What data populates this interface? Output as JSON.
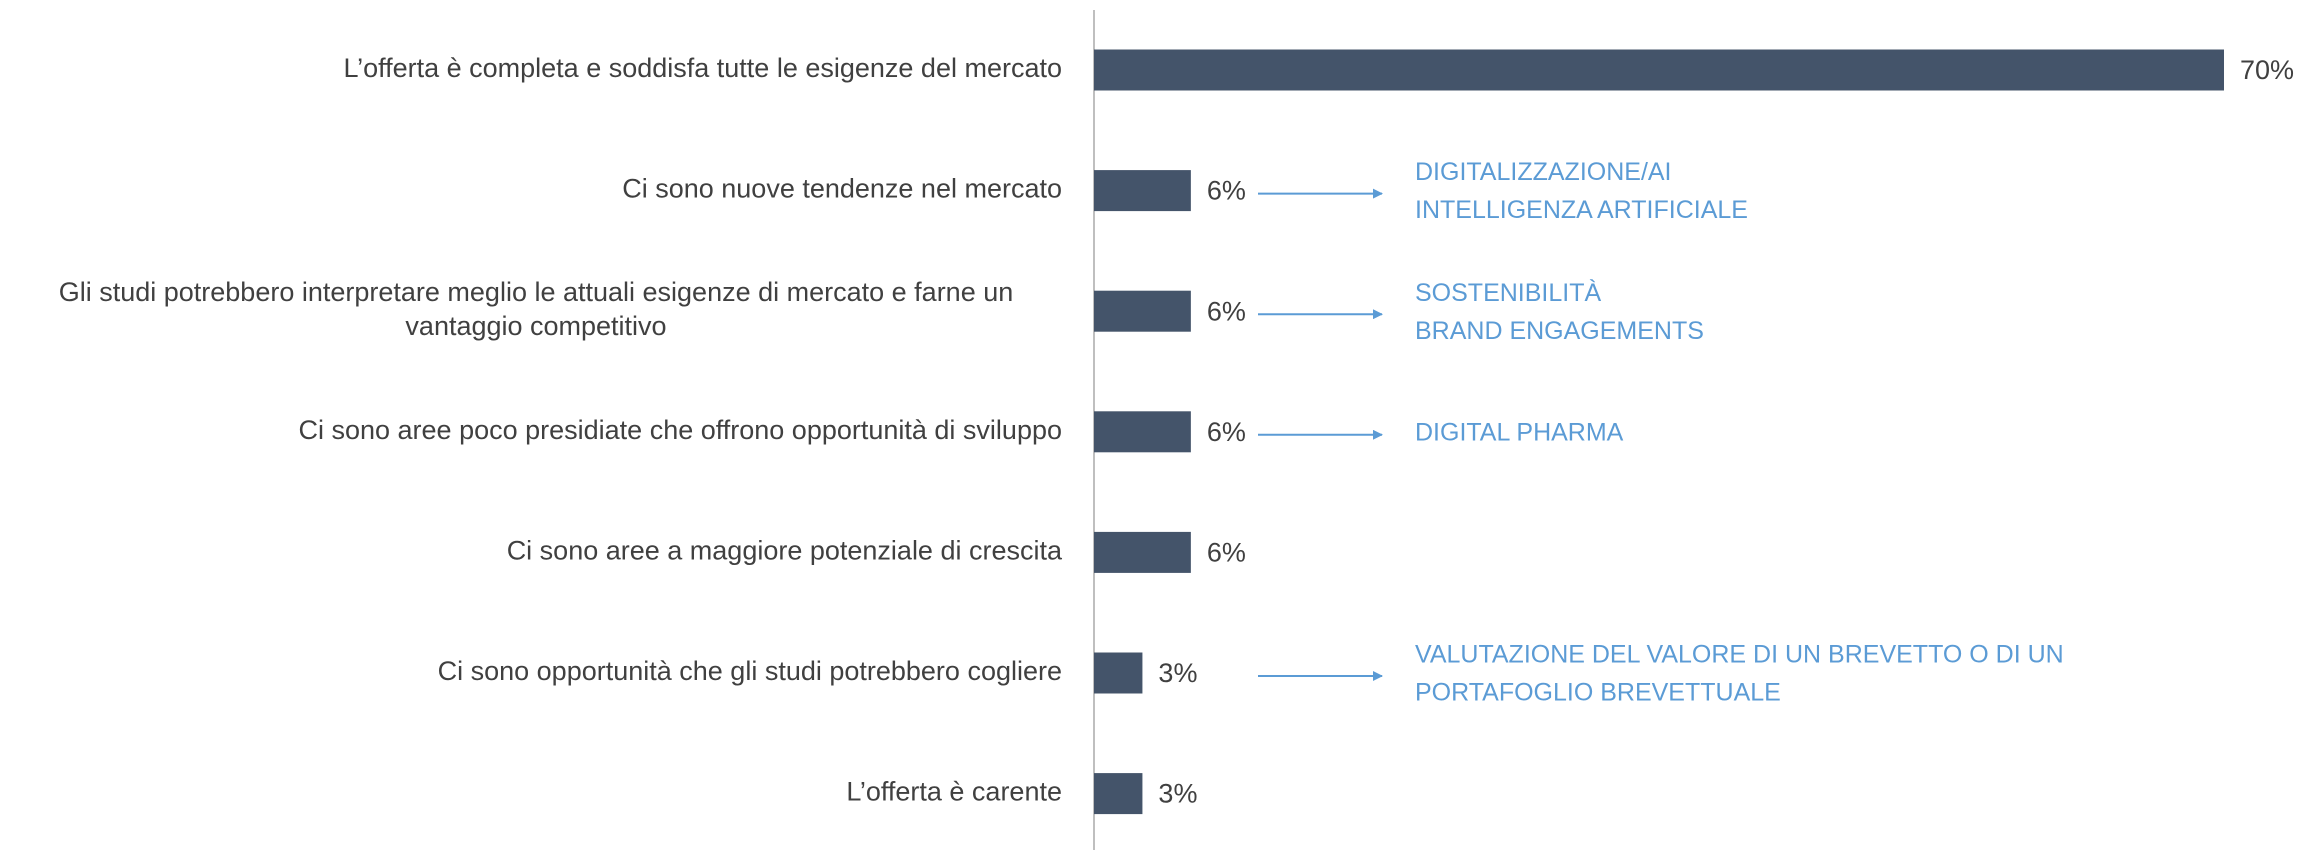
{
  "chart_data": {
    "type": "bar",
    "orientation": "horizontal",
    "categories": [
      "L’offerta è completa e soddisfa tutte le esigenze del mercato",
      "Ci sono nuove tendenze nel mercato",
      "Gli studi potrebbero interpretare meglio le attuali esigenze di mercato e farne un vantaggio competitivo",
      "Ci sono aree poco presidiate che offrono opportunità di sviluppo",
      "Ci sono aree a maggiore potenziale di crescita",
      "Ci sono opportunità che gli studi potrebbero cogliere",
      "L’offerta è carente"
    ],
    "values": [
      70,
      6,
      6,
      6,
      6,
      3,
      3
    ],
    "value_labels": [
      "70%",
      "6%",
      "6%",
      "6%",
      "6%",
      "3%",
      "3%"
    ],
    "color": "#44546a",
    "annotations": [
      null,
      [
        "DIGITALIZZAZIONE/AI",
        "INTELLIGENZA ARTIFICIALE"
      ],
      [
        "SOSTENIBILITÀ",
        "BRAND ENGAGEMENTS"
      ],
      [
        "DIGITAL PHARMA"
      ],
      null,
      [
        "VALUTAZIONE DEL VALORE DI UN BREVETTO O DI UN",
        "PORTAFOGLIO BREVETTUALE"
      ],
      null
    ],
    "annotation_color": "#5b9bd5"
  }
}
